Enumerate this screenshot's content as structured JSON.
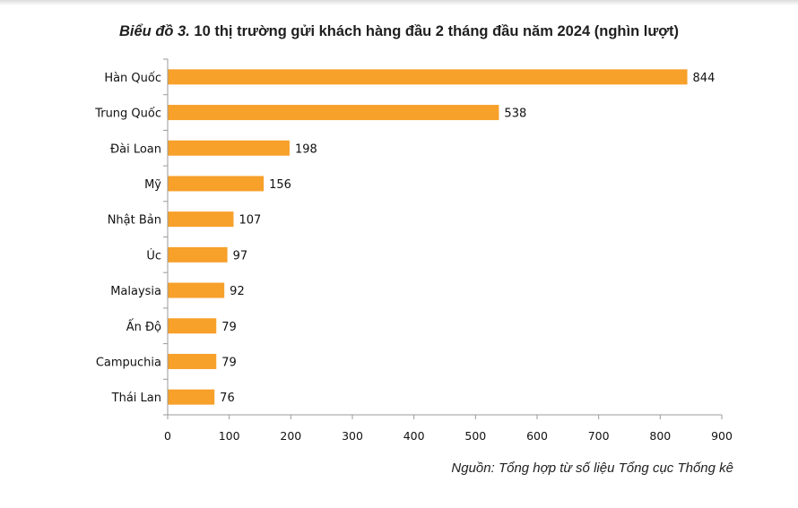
{
  "title_lead": "Biểu đồ 3.",
  "title_rest": " 10 thị trường gửi khách hàng đầu 2 tháng đầu năm 2024  (nghìn lượt)",
  "source": "Nguồn: Tổng hợp từ số liệu Tổng cục Thống kê",
  "chart_data": {
    "type": "bar",
    "orientation": "horizontal",
    "title": "Biểu đồ 3. 10 thị trường gửi khách hàng đầu 2 tháng đầu năm 2024  (nghìn lượt)",
    "categories": [
      "Hàn Quốc",
      "Trung Quốc",
      "Đài Loan",
      "Mỹ",
      "Nhật Bản",
      "Úc",
      "Malaysia",
      "Ấn Độ",
      "Campuchia",
      "Thái Lan"
    ],
    "values": [
      844,
      538,
      198,
      156,
      107,
      97,
      92,
      79,
      79,
      76
    ],
    "value_labels": [
      "844",
      "538",
      "198",
      "156",
      "107",
      "97",
      "92",
      "79",
      "79",
      "76"
    ],
    "xlim": [
      0,
      900
    ],
    "x_ticks": [
      0,
      100,
      200,
      300,
      400,
      500,
      600,
      700,
      800,
      900
    ],
    "bar_color": "#F7A02A",
    "grid": false,
    "legend": "none"
  }
}
